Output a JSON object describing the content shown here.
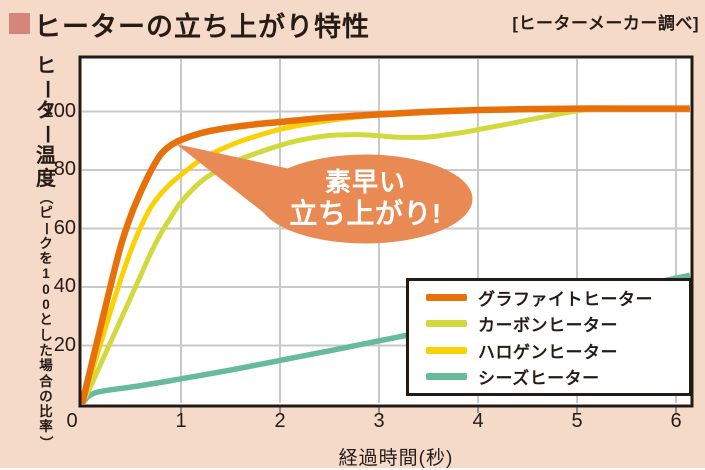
{
  "header": {
    "title": "ヒーターの立ち上がり特性",
    "credit": "[ヒーターメーカー調べ]",
    "bullet_color": "#d6857b"
  },
  "annotation": {
    "line1": "素早い",
    "line2": "立ち上がり!",
    "bubble_color": "#e98a55",
    "text_color": "#ffffff"
  },
  "chart_data": {
    "type": "line",
    "title": "ヒーターの立ち上がり特性",
    "xlabel": "経過時間(秒)",
    "ylabel_main": "ヒーター温度",
    "ylabel_sub_pre": "（ピークを",
    "ylabel_digits": "100",
    "ylabel_sub_post": "とした場合の比率）",
    "xlim": [
      0,
      6.14
    ],
    "ylim": [
      0,
      118
    ],
    "x_ticks": [
      0,
      1,
      2,
      3,
      4,
      5,
      6
    ],
    "y_ticks": [
      20,
      40,
      60,
      80,
      100
    ],
    "grid": true,
    "grid_color": "#c8c9ca",
    "plot_background": "#ffffff",
    "border_color": "#241a14",
    "legend_position": "lower right inside",
    "series": [
      {
        "name": "グラファイトヒーター",
        "color": "#e8700a",
        "width": 6.5,
        "points": [
          [
            0,
            0
          ],
          [
            0.1,
            14
          ],
          [
            0.2,
            28
          ],
          [
            0.3,
            42
          ],
          [
            0.4,
            55
          ],
          [
            0.5,
            65
          ],
          [
            0.6,
            73
          ],
          [
            0.7,
            80
          ],
          [
            0.8,
            85.5
          ],
          [
            0.9,
            88.5
          ],
          [
            1.0,
            90.3
          ],
          [
            1.2,
            92.6
          ],
          [
            1.4,
            94
          ],
          [
            1.6,
            95
          ],
          [
            1.8,
            95.8
          ],
          [
            2.0,
            96.4
          ],
          [
            2.3,
            97.4
          ],
          [
            2.6,
            98.2
          ],
          [
            3.0,
            99
          ],
          [
            3.5,
            99.9
          ],
          [
            4.0,
            100.5
          ],
          [
            4.5,
            100.8
          ],
          [
            5.0,
            101
          ],
          [
            5.5,
            101
          ],
          [
            6.14,
            101
          ]
        ]
      },
      {
        "name": "カーボンヒーター",
        "color": "#d3d93c",
        "width": 5,
        "points": [
          [
            0,
            0
          ],
          [
            0.1,
            7
          ],
          [
            0.2,
            14.5
          ],
          [
            0.3,
            22
          ],
          [
            0.4,
            29.5
          ],
          [
            0.5,
            37
          ],
          [
            0.6,
            44.5
          ],
          [
            0.7,
            52
          ],
          [
            0.8,
            58.5
          ],
          [
            0.9,
            64
          ],
          [
            1.0,
            69
          ],
          [
            1.2,
            76
          ],
          [
            1.4,
            80.5
          ],
          [
            1.6,
            83.7
          ],
          [
            1.8,
            86.2
          ],
          [
            2.0,
            88.4
          ],
          [
            2.2,
            90.2
          ],
          [
            2.5,
            91.8
          ],
          [
            2.8,
            92.1
          ],
          [
            3.0,
            91.7
          ],
          [
            3.2,
            91.2
          ],
          [
            3.5,
            91.3
          ],
          [
            3.8,
            92.6
          ],
          [
            4.0,
            93.8
          ],
          [
            4.3,
            95.7
          ],
          [
            4.6,
            97.7
          ],
          [
            5.0,
            100.2
          ],
          [
            5.3,
            100.9
          ],
          [
            5.6,
            101
          ],
          [
            6.14,
            101
          ]
        ]
      },
      {
        "name": "ハロゲンヒーター",
        "color": "#fad105",
        "width": 5,
        "points": [
          [
            0,
            0
          ],
          [
            0.1,
            11
          ],
          [
            0.2,
            22
          ],
          [
            0.3,
            33
          ],
          [
            0.4,
            43.5
          ],
          [
            0.5,
            53
          ],
          [
            0.6,
            61
          ],
          [
            0.7,
            67.5
          ],
          [
            0.8,
            72
          ],
          [
            0.9,
            75.5
          ],
          [
            1.0,
            78.3
          ],
          [
            1.2,
            83.5
          ],
          [
            1.4,
            87
          ],
          [
            1.6,
            89.8
          ],
          [
            1.8,
            92
          ],
          [
            2.0,
            93.9
          ],
          [
            2.2,
            95.3
          ],
          [
            2.4,
            96.4
          ],
          [
            2.6,
            97.4
          ],
          [
            2.8,
            98.2
          ],
          [
            3.0,
            98.8
          ],
          [
            3.5,
            99.9
          ],
          [
            4.0,
            100.5
          ],
          [
            4.5,
            100.8
          ],
          [
            5.0,
            101
          ],
          [
            6.14,
            101
          ]
        ]
      },
      {
        "name": "シーズヒーター",
        "color": "#66bb98",
        "width": 5.5,
        "points": [
          [
            0,
            0
          ],
          [
            0.06,
            2.5
          ],
          [
            0.15,
            4
          ],
          [
            0.3,
            4.9
          ],
          [
            0.6,
            6.3
          ],
          [
            1.0,
            8.6
          ],
          [
            1.5,
            11.6
          ],
          [
            2.0,
            14.9
          ],
          [
            2.5,
            18.2
          ],
          [
            3.0,
            21.6
          ],
          [
            3.5,
            25
          ],
          [
            4.0,
            28.6
          ],
          [
            4.5,
            32.1
          ],
          [
            5.0,
            35.6
          ],
          [
            5.5,
            39.5
          ],
          [
            6.0,
            43
          ],
          [
            6.14,
            44
          ]
        ]
      }
    ]
  }
}
